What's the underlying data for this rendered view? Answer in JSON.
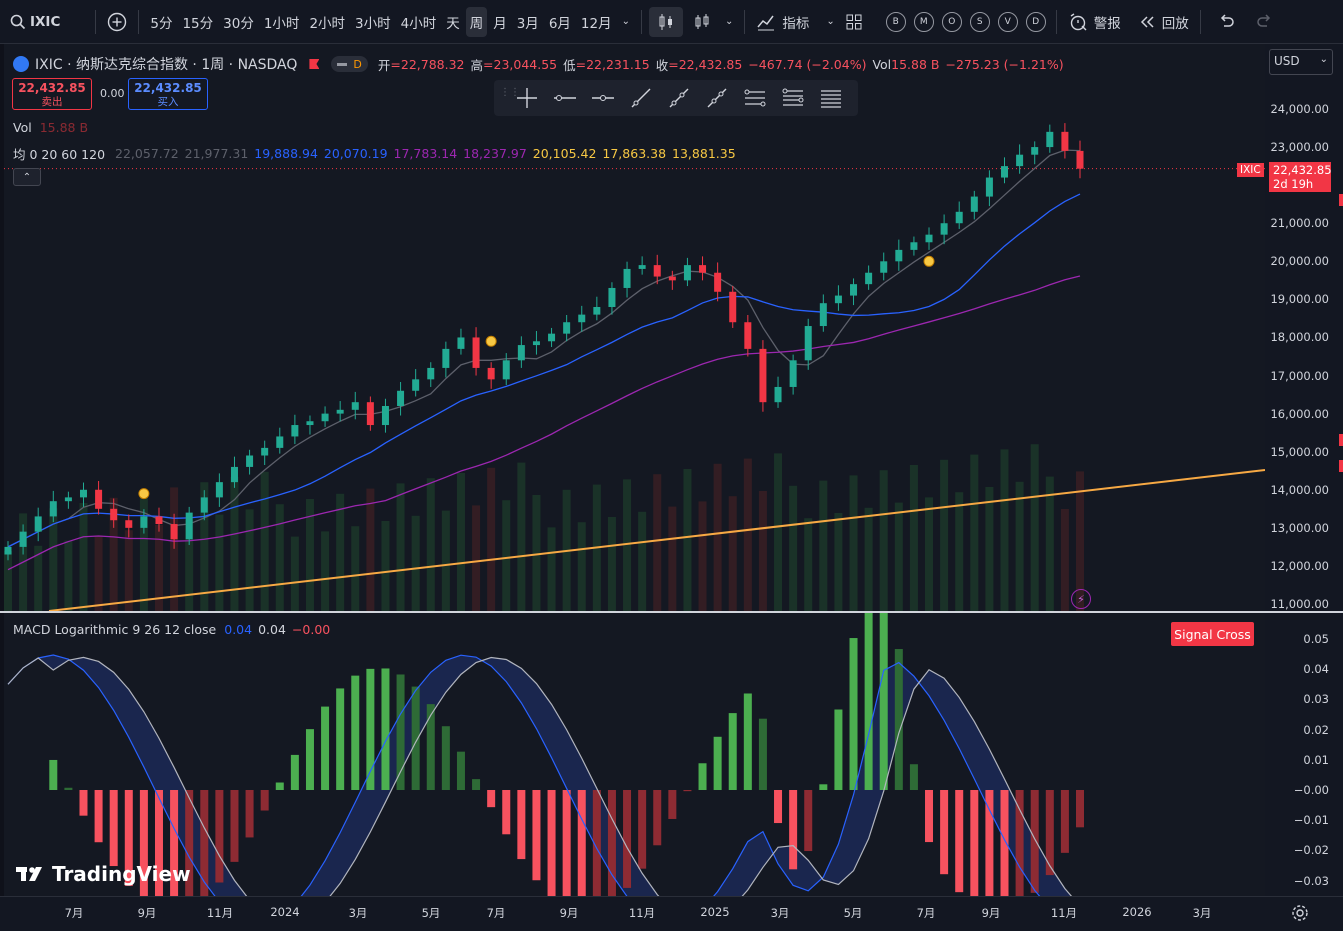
{
  "toolbar": {
    "symbol": "IXIC",
    "intervals": [
      "5分",
      "15分",
      "30分",
      "1小时",
      "2小时",
      "3小时",
      "4小时",
      "天",
      "周",
      "月",
      "3月",
      "6月",
      "12月"
    ],
    "active_interval": "周",
    "indicators_label": "指标",
    "circle_buttons": [
      "B",
      "M",
      "O",
      "S",
      "V",
      "D"
    ],
    "alert_label": "警报",
    "replay_label": "回放"
  },
  "header": {
    "title": "IXIC · 纳斯达克综合指数 · 1周 · NASDAQ",
    "session_badge": "D",
    "open_label": "开",
    "open": "=22,788.32",
    "high_label": "高",
    "high": "=23,044.55",
    "low_label": "低",
    "low": "=22,231.15",
    "close_label": "收",
    "close": "=22,432.85",
    "change": "−467.74 (−2.04%)",
    "vol_label": "Vol",
    "vol_value": "15.88 B",
    "vol_change": "−275.23 (−1.21%)"
  },
  "trade": {
    "sell_price": "22,432.85",
    "sell_label": "卖出",
    "spread": "0.00",
    "buy_price": "22,432.85",
    "buy_label": "买入"
  },
  "vol_legend": {
    "label": "Vol",
    "value": "15.88 B"
  },
  "ma_legend": {
    "label": "均 0 20 60 120",
    "values": [
      "22,057.72",
      "21,977.31",
      "19,888.94",
      "20,070.19",
      "17,783.14",
      "18,237.97",
      "20,105.42",
      "17,863.38",
      "13,881.35"
    ],
    "colors": [
      "#5d606b",
      "#5d606b",
      "#2962ff",
      "#2962ff",
      "#9c27b0",
      "#9c27b0",
      "#f7c844",
      "#f7c844",
      "#f7c844"
    ]
  },
  "price_axis": {
    "currency": "USD",
    "ticks": [
      "24,000.00",
      "23,000.00",
      "22,000.00",
      "21,000.00",
      "20,000.00",
      "19,000.00",
      "18,000.00",
      "17,000.00",
      "16,000.00",
      "15,000.00",
      "14,000.00",
      "13,000.00",
      "12,000.00",
      "11,000.00"
    ],
    "last_price": "22,432.85",
    "countdown": "2d 19h",
    "symbol_tag": "IXIC"
  },
  "macd": {
    "label": "MACD Logarithmic 9 26 12 close",
    "v1": "0.04",
    "v2": "0.04",
    "v3": "−0.00",
    "ticks": [
      "0.05",
      "0.04",
      "0.03",
      "0.02",
      "0.01",
      "−0.00",
      "−0.01",
      "−0.02",
      "−0.03"
    ],
    "signal_badge": "Signal Cross"
  },
  "time_axis": {
    "ticks": [
      "7月",
      "9月",
      "11月",
      "2024",
      "3月",
      "5月",
      "7月",
      "9月",
      "11月",
      "2025",
      "3月",
      "5月",
      "7月",
      "9月",
      "11月",
      "2026",
      "3月"
    ]
  },
  "brand": "TradingView",
  "chart_data": {
    "type": "candlestick",
    "title": "IXIC · 纳斯达克综合指数 · 1周 · NASDAQ",
    "ylim": [
      11000,
      24500
    ],
    "close_series": [
      12500,
      12900,
      13300,
      13700,
      13800,
      14000,
      13500,
      13200,
      13000,
      13300,
      13100,
      12700,
      13400,
      13800,
      14200,
      14600,
      14900,
      15100,
      15400,
      15700,
      15800,
      16000,
      16100,
      16300,
      15700,
      16200,
      16600,
      16900,
      17200,
      17700,
      18000,
      17200,
      16900,
      17400,
      17800,
      17900,
      18100,
      18400,
      18600,
      18800,
      19300,
      19800,
      19900,
      19600,
      19500,
      19900,
      19700,
      19200,
      18400,
      17700,
      16300,
      16700,
      17400,
      18300,
      18900,
      19100,
      19400,
      19700,
      20000,
      20300,
      20500,
      20700,
      21000,
      21300,
      21700,
      22200,
      22500,
      22800,
      23000,
      23400,
      22900,
      22432.85
    ],
    "markers": [
      {
        "date": "2023-08",
        "value": 13900
      },
      {
        "date": "2024-08",
        "value": 17900
      },
      {
        "date": "2025-06",
        "value": 20000
      }
    ]
  }
}
